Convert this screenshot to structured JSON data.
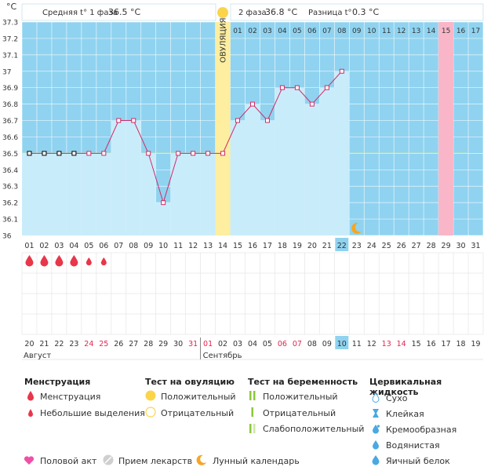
{
  "chart_data": {
    "type": "line",
    "y_unit": "°C",
    "ylim": [
      36.0,
      37.3
    ],
    "y_ticks": [
      "37.3",
      "37.2",
      "37.1",
      "37",
      "36.9",
      "36.8",
      "36.7",
      "36.6",
      "36.5",
      "36.4",
      "36.3",
      "36.2",
      "36.1",
      "36"
    ],
    "header": {
      "phase1_label": "Средняя t° 1 фаза",
      "phase1_value": "36.5 °C",
      "phase2_label": "2 фаза",
      "phase2_value": "36.8 °C",
      "diff_label": "Разница t°",
      "diff_value": "0.3 °C"
    },
    "ovulation_label": "ОВУЛЯЦИЯ",
    "cycle_days": [
      "01",
      "02",
      "03",
      "04",
      "05",
      "06",
      "07",
      "08",
      "09",
      "10",
      "11",
      "12",
      "13",
      "14",
      "15",
      "16",
      "17",
      "18",
      "19",
      "20",
      "21",
      "22",
      "23",
      "24",
      "25",
      "26",
      "27",
      "28",
      "29",
      "30",
      "31"
    ],
    "top_labels_phase2": [
      "01",
      "02",
      "03",
      "04",
      "05",
      "06",
      "07",
      "08",
      "09",
      "10",
      "11",
      "12",
      "13",
      "14",
      "15",
      "16",
      "17"
    ],
    "temperatures": [
      36.5,
      36.5,
      36.5,
      36.5,
      36.5,
      36.5,
      36.7,
      36.7,
      36.5,
      36.2,
      36.5,
      36.5,
      36.5,
      36.5,
      36.7,
      36.8,
      36.7,
      36.9,
      36.9,
      36.8,
      36.9,
      37.0,
      null,
      null,
      null,
      null,
      null,
      null,
      null,
      null,
      null
    ],
    "coverline": 36.5,
    "ovulation_day": 14,
    "current_day": 22,
    "highlight_day": 29,
    "moon_day": 23,
    "menstruation": [
      {
        "day": 1,
        "type": "full"
      },
      {
        "day": 2,
        "type": "full"
      },
      {
        "day": 3,
        "type": "full"
      },
      {
        "day": 4,
        "type": "full"
      },
      {
        "day": 5,
        "type": "small"
      },
      {
        "day": 6,
        "type": "small"
      }
    ],
    "calendar_dates": [
      "20",
      "21",
      "22",
      "23",
      "24",
      "25",
      "26",
      "27",
      "28",
      "29",
      "30",
      "31",
      "01",
      "02",
      "03",
      "04",
      "05",
      "06",
      "07",
      "08",
      "09",
      "10",
      "11",
      "12",
      "13",
      "14",
      "15",
      "16",
      "17",
      "18",
      "19"
    ],
    "calendar_red": [
      4,
      5,
      11,
      12,
      17,
      18,
      24,
      25
    ],
    "current_date": "10",
    "month_august": "Август",
    "month_september": "Сентябрь",
    "colors": {
      "bg_blue": "#8fd3f0",
      "bar_blue": "#c9ecfb",
      "line": "#d12b66",
      "ovulation": "#fdeea0",
      "highlight": "#f9b6c8",
      "coverline": "#f4f170",
      "drop": "#e8364a"
    }
  },
  "legend": {
    "menstr_title": "Менструация",
    "menstr_items": [
      "Менструация",
      "Небольшие выделения"
    ],
    "ovtest_title": "Тест на овуляцию",
    "ovtest_items": [
      "Положительный",
      "Отрицательный"
    ],
    "pregtest_title": "Тест на беременность",
    "pregtest_items": [
      "Положительный",
      "Отрицательный",
      "Слабоположительный"
    ],
    "fluid_title": "Цервикальная жидкость",
    "fluid_items": [
      "Сухо",
      "Клейкая",
      "Кремообразная",
      "Водянистая",
      "Яичный белок"
    ],
    "bottom_items": [
      "Половой акт",
      "Прием лекарств",
      "Лунный календарь"
    ]
  }
}
